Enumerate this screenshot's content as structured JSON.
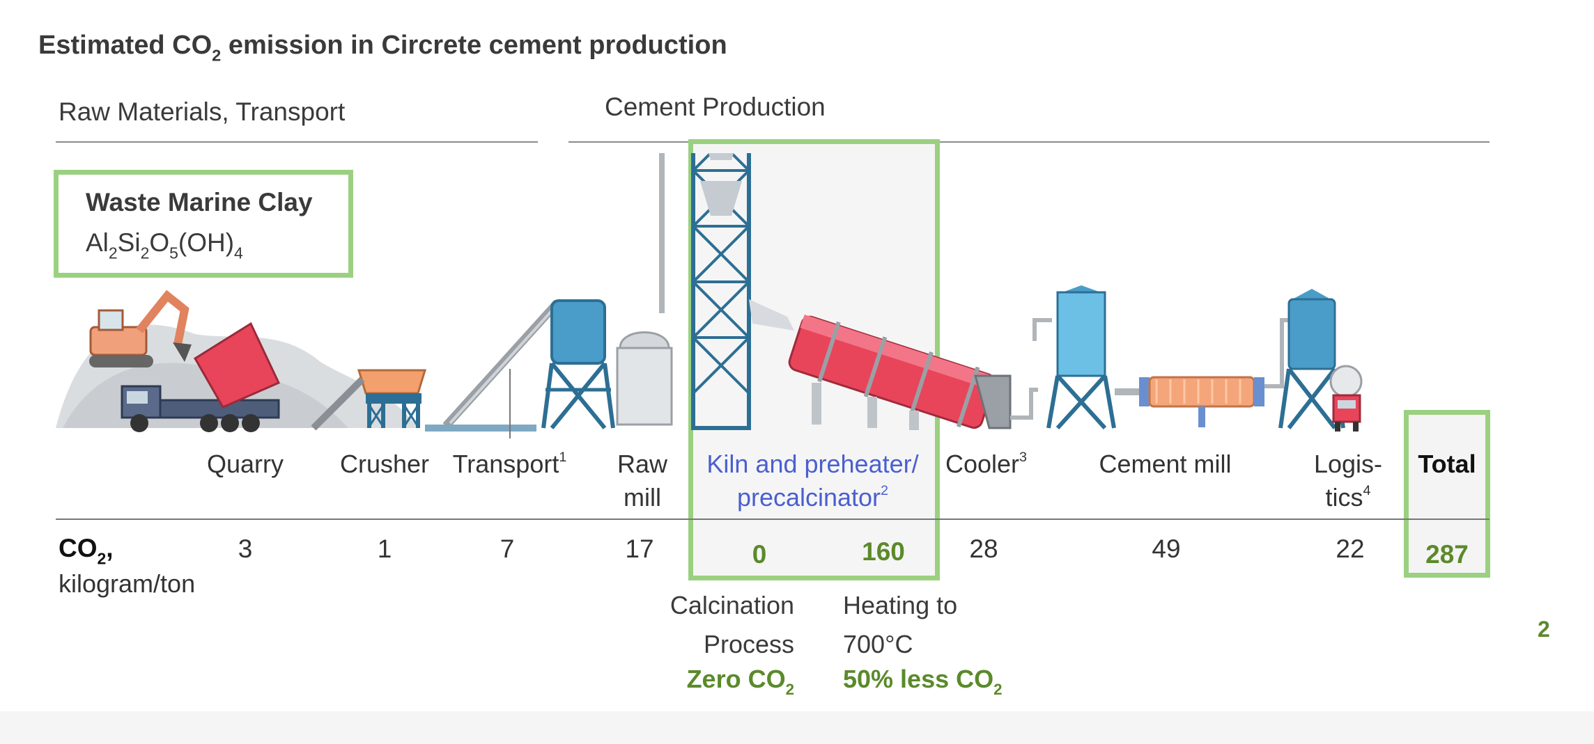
{
  "title": "Estimated CO2 emission in Circrete cement production",
  "title_parts": {
    "pre": "Estimated CO",
    "sub": "2",
    "post": " emission in Circrete cement production"
  },
  "sections": {
    "raw": "Raw Materials, Transport",
    "cement": "Cement Production"
  },
  "clay": {
    "name": "Waste Marine Clay",
    "formula_parts": [
      "Al",
      "2",
      "Si",
      "2",
      "O",
      "5",
      "(OH)",
      "4"
    ]
  },
  "stages": [
    {
      "label": "Quarry",
      "value": "3"
    },
    {
      "label": "Crusher",
      "value": "1"
    },
    {
      "label": "Transport",
      "sup": "1",
      "value": "7"
    },
    {
      "label_line1": "Raw",
      "label_line2": "mill",
      "value": "17"
    },
    {
      "label_line1": "Kiln and preheater/",
      "label_line2": "precalcinator",
      "sup": "2",
      "values": [
        "0",
        "160"
      ]
    },
    {
      "label": "Cooler",
      "sup": "3",
      "value": "28"
    },
    {
      "label": "Cement mill",
      "value": "49"
    },
    {
      "label_line1": "Logis-",
      "label_line2": "tics",
      "sup": "4",
      "value": "22"
    },
    {
      "label": "Total",
      "value": "287"
    }
  ],
  "row_label": {
    "co2": "CO",
    "co2_sub": "2",
    "co2_comma": ",",
    "unit": "kilogram/ton"
  },
  "notes": {
    "calcination": {
      "line1": "Calcination",
      "line2": "Process",
      "green_pre": "Zero CO",
      "green_sub": "2"
    },
    "heating": {
      "line1": "Heating to",
      "line2": "700°C",
      "green_pre": "50% less CO",
      "green_sub": "2"
    }
  },
  "page_number": "2",
  "colors": {
    "green_box": "#9bd080",
    "green_text": "#5b8a2a",
    "kiln_label": "#4a5fd0",
    "kiln_red": "#e8455a",
    "tower_blue": "#2d6f94"
  }
}
